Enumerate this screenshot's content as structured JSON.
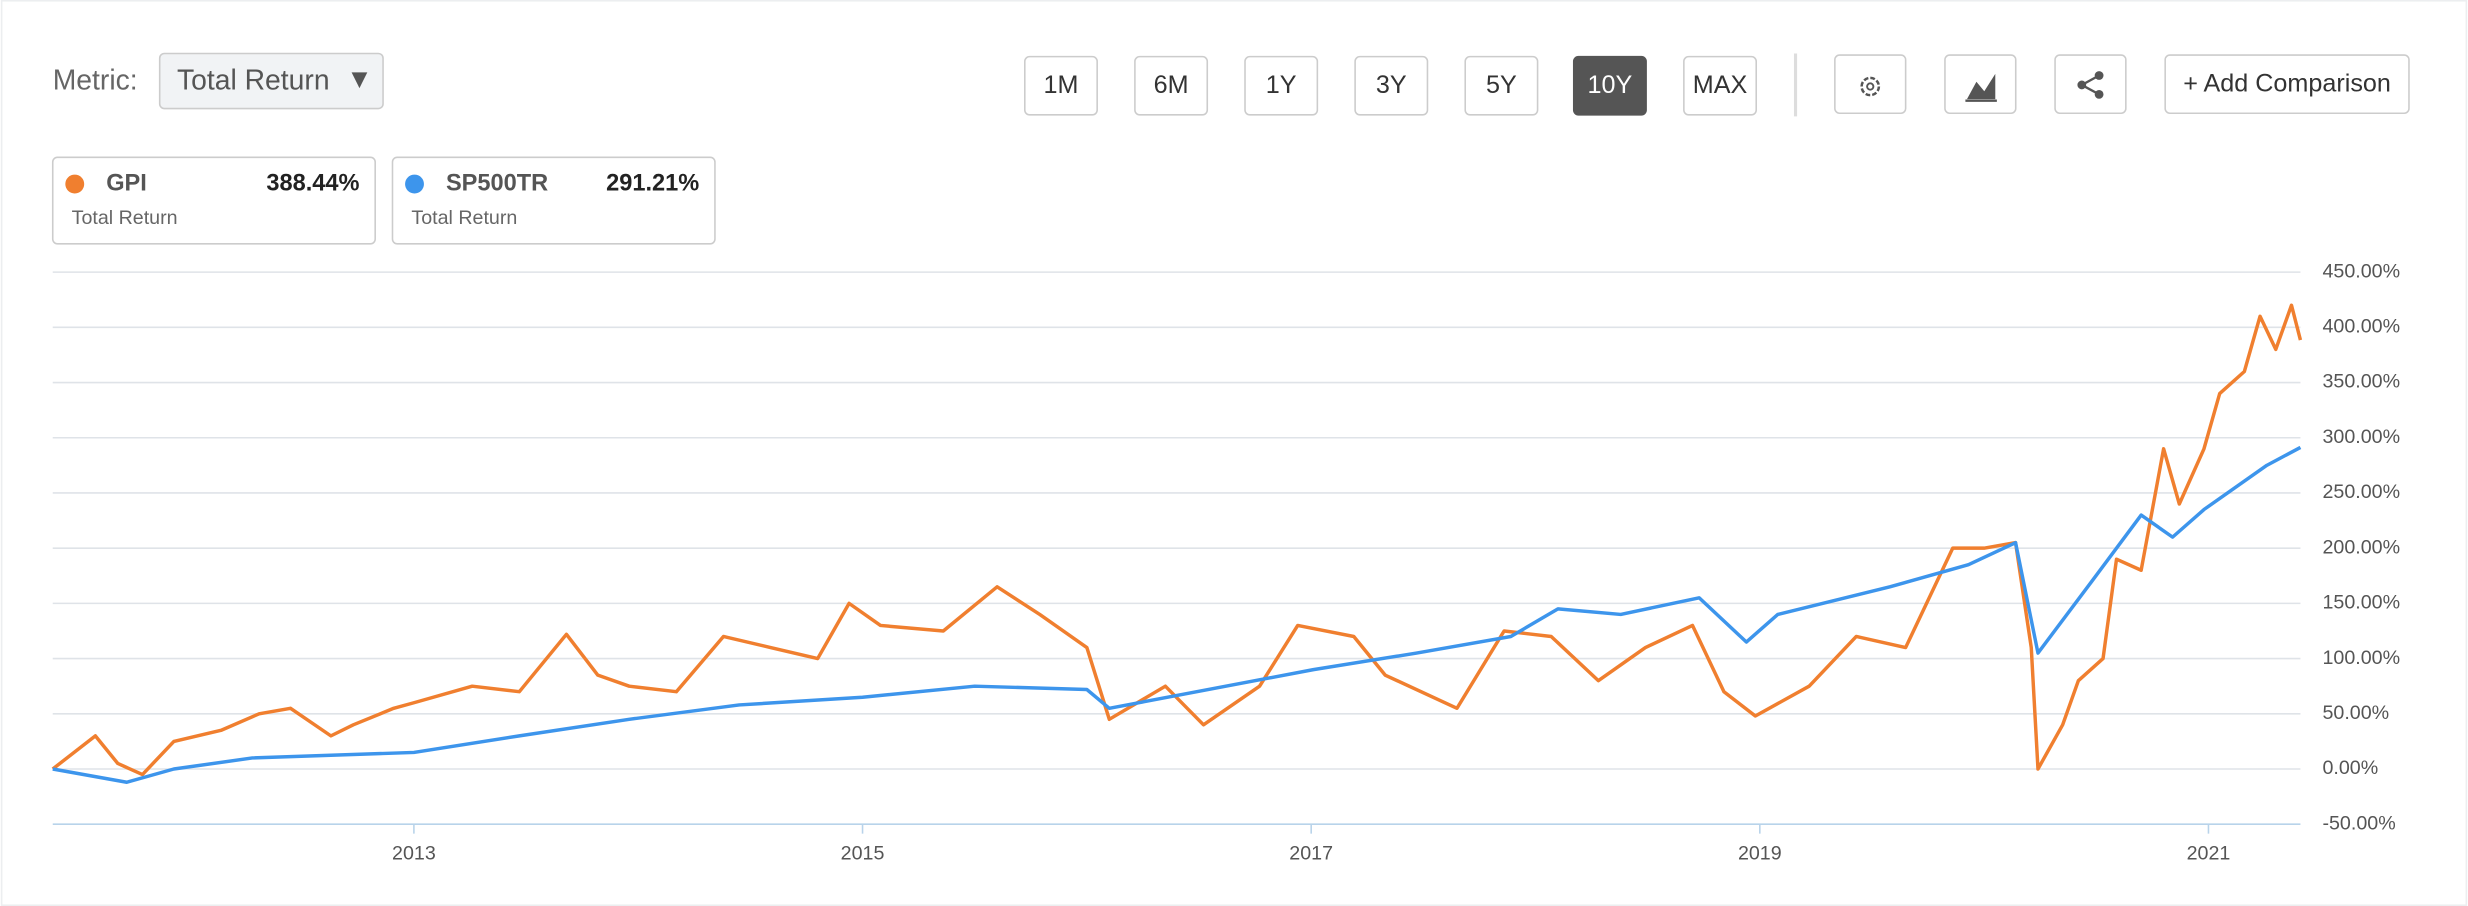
{
  "ui": {
    "metric_label": "Metric:",
    "metric_value": "Total Return",
    "ranges": [
      "1M",
      "6M",
      "1Y",
      "3Y",
      "5Y",
      "10Y",
      "MAX"
    ],
    "active_range": "10Y",
    "add_comparison": "+ Add Comparison"
  },
  "chart_data": {
    "type": "line",
    "xlim": [
      2011.39,
      2021.41
    ],
    "xticks": [
      2013,
      2015,
      2017,
      2019,
      2021
    ],
    "ylim": [
      -50,
      450
    ],
    "yticks": [
      {
        "value": -50,
        "label": "-50.00%"
      },
      {
        "value": 0,
        "label": "0.00%"
      },
      {
        "value": 50,
        "label": "50.00%"
      },
      {
        "value": 100,
        "label": "100.00%"
      },
      {
        "value": 150,
        "label": "150.00%"
      },
      {
        "value": 200,
        "label": "200.00%"
      },
      {
        "value": 250,
        "label": "250.00%"
      },
      {
        "value": 300,
        "label": "300.00%"
      },
      {
        "value": 350,
        "label": "350.00%"
      },
      {
        "value": 400,
        "label": "400.00%"
      },
      {
        "value": 450,
        "label": "450.00%"
      }
    ],
    "grid": true,
    "series": [
      {
        "name": "GPI",
        "color": "#f07f2f",
        "total": "388.44%",
        "metric": "Total Return",
        "x": [
          2011.39,
          2011.58,
          2011.68,
          2011.79,
          2011.93,
          2012.14,
          2012.31,
          2012.45,
          2012.63,
          2012.73,
          2012.91,
          2013.0,
          2013.26,
          2013.47,
          2013.68,
          2013.82,
          2013.96,
          2014.17,
          2014.38,
          2014.59,
          2014.8,
          2014.94,
          2015.08,
          2015.36,
          2015.6,
          2015.79,
          2016.0,
          2016.1,
          2016.35,
          2016.52,
          2016.77,
          2016.94,
          2017.19,
          2017.33,
          2017.65,
          2017.86,
          2018.07,
          2018.28,
          2018.49,
          2018.7,
          2018.84,
          2018.98,
          2019.22,
          2019.43,
          2019.65,
          2019.86,
          2020.0,
          2020.14,
          2020.21,
          2020.24,
          2020.35,
          2020.42,
          2020.53,
          2020.59,
          2020.7,
          2020.8,
          2020.87,
          2020.98,
          2021.05,
          2021.16,
          2021.23,
          2021.3,
          2021.37,
          2021.41
        ],
        "values": [
          0,
          30,
          5,
          -5,
          25,
          35,
          50,
          55,
          30,
          40,
          55,
          60,
          75,
          70,
          122,
          85,
          75,
          70,
          120,
          110,
          100,
          150,
          130,
          125,
          165,
          140,
          110,
          45,
          75,
          40,
          75,
          130,
          120,
          85,
          55,
          125,
          120,
          80,
          110,
          130,
          70,
          48,
          75,
          120,
          110,
          200,
          200,
          205,
          110,
          0,
          40,
          80,
          100,
          190,
          180,
          290,
          240,
          290,
          340,
          360,
          410,
          380,
          420,
          388.44
        ]
      },
      {
        "name": "SP500TR",
        "color": "#3d95ec",
        "total": "291.21%",
        "metric": "Total Return",
        "x": [
          2011.39,
          2011.72,
          2011.93,
          2012.28,
          2013.0,
          2013.47,
          2013.96,
          2014.45,
          2015.0,
          2015.5,
          2016.0,
          2016.1,
          2016.49,
          2017.01,
          2017.47,
          2017.89,
          2018.1,
          2018.38,
          2018.73,
          2018.94,
          2019.08,
          2019.58,
          2019.93,
          2020.14,
          2020.24,
          2020.48,
          2020.7,
          2020.84,
          2020.98,
          2021.26,
          2021.41
        ],
        "values": [
          0,
          -12,
          0,
          10,
          15,
          30,
          45,
          58,
          65,
          75,
          72,
          55,
          70,
          90,
          105,
          120,
          145,
          140,
          155,
          115,
          140,
          165,
          185,
          205,
          105,
          170,
          230,
          210,
          235,
          275,
          291.21
        ]
      }
    ]
  }
}
